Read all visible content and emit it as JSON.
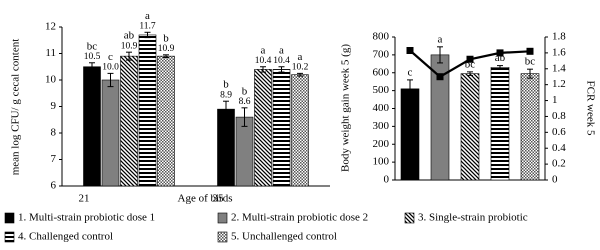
{
  "chart_data": [
    {
      "type": "bar",
      "ylabel": "mean log CFU/ g cecal content",
      "xlabel": "Age of birds",
      "categories": [
        "21",
        "35"
      ],
      "ylim": [
        6,
        12
      ],
      "yticks": [
        6,
        7,
        8,
        9,
        10,
        11,
        12
      ],
      "series": [
        {
          "name": "1. Multi-strain probiotic dose 1",
          "color": "#000000",
          "pattern": "solid",
          "values": [
            10.5,
            8.9
          ],
          "value_labels": [
            "10.5",
            "8.9"
          ],
          "errors": [
            0.15,
            0.3
          ],
          "letters": [
            "bc",
            "b"
          ]
        },
        {
          "name": "2. Multi-strain probiotic dose 2",
          "color": "#808080",
          "pattern": "solid",
          "values": [
            10.0,
            8.6
          ],
          "value_labels": [
            "10.0",
            "8.6"
          ],
          "errors": [
            0.25,
            0.35
          ],
          "letters": [
            "c",
            "b"
          ]
        },
        {
          "name": "3. Single-strain probiotic",
          "color": "#000000",
          "pattern": "diagonal",
          "values": [
            10.9,
            10.4
          ],
          "value_labels": [
            "10.9",
            "10.4"
          ],
          "errors": [
            0.15,
            0.1
          ],
          "letters": [
            "ab",
            "a"
          ]
        },
        {
          "name": "4. Challenged control",
          "color": "#000000",
          "pattern": "horizontal",
          "values": [
            11.7,
            10.4
          ],
          "value_labels": [
            "11.7",
            "10.4"
          ],
          "errors": [
            0.1,
            0.1
          ],
          "letters": [
            "a",
            "a"
          ]
        },
        {
          "name": "5. Unchallenged control",
          "color": "#000000",
          "pattern": "dots",
          "values": [
            10.9,
            10.2
          ],
          "value_labels": [
            "10.9",
            "10.2"
          ],
          "errors": [
            0.05,
            0.05
          ],
          "letters": [
            "b",
            "a"
          ]
        }
      ]
    },
    {
      "type": "bar-line",
      "ylabel": "Body weight gain week 5 (g)",
      "y2label": "FCR week 5",
      "categories": [
        null,
        null,
        null,
        null,
        null
      ],
      "ylim": [
        0,
        800
      ],
      "yticks": [
        0,
        100,
        200,
        300,
        400,
        500,
        600,
        700,
        800
      ],
      "y2lim": [
        0,
        1.8
      ],
      "y2ticks": [
        0,
        0.2,
        0.4,
        0.6,
        0.8,
        1,
        1.2,
        1.4,
        1.6,
        1.8
      ],
      "series": [
        {
          "values": [
            510,
            700,
            595,
            630,
            595
          ],
          "errors": [
            50,
            45,
            10,
            10,
            25
          ],
          "letters": [
            "c",
            "a",
            "bc",
            "ab",
            "bc"
          ]
        },
        {
          "axis": "y2",
          "color": "#000000",
          "values": [
            1.63,
            1.3,
            1.52,
            1.6,
            1.62
          ]
        }
      ]
    }
  ]
}
